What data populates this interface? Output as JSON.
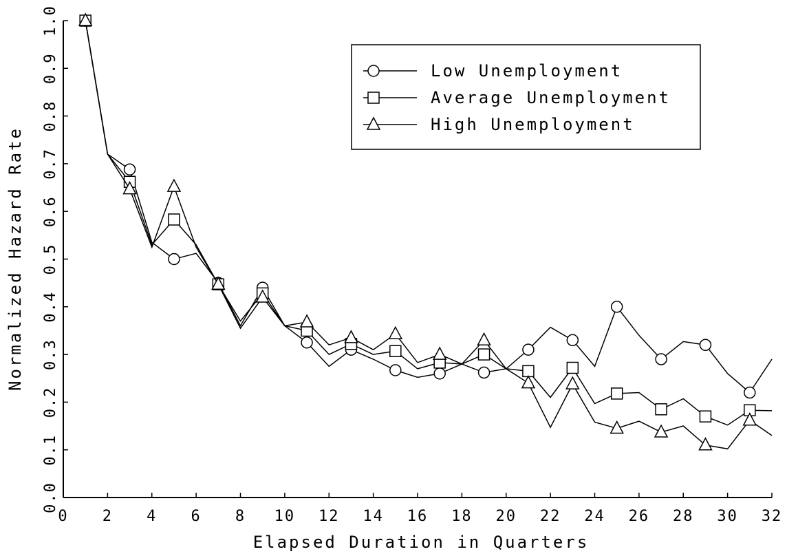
{
  "chart_data": {
    "type": "line",
    "xlabel": "Elapsed Duration in Quarters",
    "ylabel": "Normalized Hazard Rate",
    "xlim": [
      0,
      32
    ],
    "ylim": [
      0.0,
      1.0
    ],
    "x_ticks": [
      "0",
      "2",
      "4",
      "6",
      "8",
      "10",
      "12",
      "14",
      "16",
      "18",
      "20",
      "22",
      "24",
      "26",
      "28",
      "30",
      "32"
    ],
    "y_ticks": [
      "0.0",
      "0.1",
      "0.2",
      "0.3",
      "0.4",
      "0.5",
      "0.6",
      "0.7",
      "0.8",
      "0.9",
      "1.0"
    ],
    "grid": false,
    "legend_position": "top-right",
    "x": [
      1,
      2,
      3,
      4,
      5,
      6,
      7,
      8,
      9,
      10,
      11,
      12,
      13,
      14,
      15,
      16,
      17,
      18,
      19,
      20,
      21,
      22,
      23,
      24,
      25,
      26,
      27,
      28,
      29,
      30,
      31,
      32
    ],
    "series": [
      {
        "name": "Low Unemployment",
        "marker": "circle",
        "values": [
          1.0,
          0.72,
          0.688,
          0.535,
          0.5,
          0.512,
          0.45,
          0.36,
          0.44,
          0.36,
          0.325,
          0.275,
          0.31,
          0.29,
          0.267,
          0.252,
          0.26,
          0.28,
          0.262,
          0.27,
          0.31,
          0.357,
          0.33,
          0.275,
          0.4,
          0.34,
          0.29,
          0.327,
          0.32,
          0.26,
          0.22,
          0.29
        ]
      },
      {
        "name": "Average Unemployment",
        "marker": "square",
        "values": [
          1.0,
          0.72,
          0.662,
          0.53,
          0.583,
          0.53,
          0.447,
          0.37,
          0.428,
          0.36,
          0.35,
          0.3,
          0.322,
          0.3,
          0.307,
          0.27,
          0.283,
          0.28,
          0.3,
          0.27,
          0.265,
          0.21,
          0.272,
          0.197,
          0.218,
          0.22,
          0.185,
          0.207,
          0.17,
          0.152,
          0.183,
          0.182
        ]
      },
      {
        "name": "High Unemployment",
        "marker": "triangle",
        "values": [
          1.0,
          0.72,
          0.647,
          0.525,
          0.652,
          0.525,
          0.447,
          0.355,
          0.42,
          0.36,
          0.368,
          0.32,
          0.335,
          0.31,
          0.343,
          0.283,
          0.3,
          0.28,
          0.33,
          0.27,
          0.24,
          0.147,
          0.238,
          0.158,
          0.145,
          0.16,
          0.137,
          0.15,
          0.11,
          0.102,
          0.162,
          0.13
        ]
      }
    ],
    "colors": {
      "line": "#000000",
      "background": "#ffffff"
    }
  }
}
